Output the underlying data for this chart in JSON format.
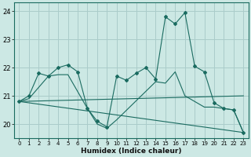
{
  "xlabel": "Humidex (Indice chaleur)",
  "xlim": [
    -0.5,
    23.5
  ],
  "ylim": [
    19.5,
    24.3
  ],
  "yticks": [
    20,
    21,
    22,
    23,
    24
  ],
  "xticks": [
    0,
    1,
    2,
    3,
    4,
    5,
    6,
    7,
    8,
    9,
    10,
    11,
    12,
    13,
    14,
    15,
    16,
    17,
    18,
    19,
    20,
    21,
    22,
    23
  ],
  "background_color": "#cce8e4",
  "grid_color": "#aaccca",
  "line_color": "#1a6b60",
  "series": [
    {
      "x": [
        0,
        1,
        2,
        3,
        4,
        5,
        6,
        7,
        8,
        9,
        10,
        11,
        12,
        13,
        14,
        15,
        16,
        17,
        18,
        19,
        20,
        21,
        22,
        23
      ],
      "y": [
        20.8,
        21.0,
        21.8,
        21.7,
        22.0,
        22.1,
        21.85,
        20.55,
        20.1,
        19.9,
        21.7,
        21.55,
        21.8,
        22.0,
        21.6,
        23.8,
        23.55,
        23.95,
        22.05,
        21.85,
        20.75,
        20.55,
        20.5,
        19.7
      ],
      "marker": "D",
      "markersize": 2.0
    },
    {
      "x": [
        0,
        1,
        3,
        4,
        5,
        7,
        8,
        9,
        10,
        14,
        15,
        16,
        17,
        19,
        20,
        21,
        22,
        23
      ],
      "y": [
        20.8,
        20.9,
        21.7,
        21.75,
        21.75,
        20.55,
        20.0,
        19.85,
        20.15,
        21.5,
        21.45,
        21.85,
        21.0,
        20.6,
        20.6,
        20.55,
        20.5,
        19.7
      ],
      "marker": null,
      "markersize": 0
    },
    {
      "x": [
        0,
        23
      ],
      "y": [
        20.8,
        19.7
      ],
      "marker": null,
      "markersize": 0
    },
    {
      "x": [
        0,
        23
      ],
      "y": [
        20.8,
        21.0
      ],
      "marker": null,
      "markersize": 0
    }
  ]
}
